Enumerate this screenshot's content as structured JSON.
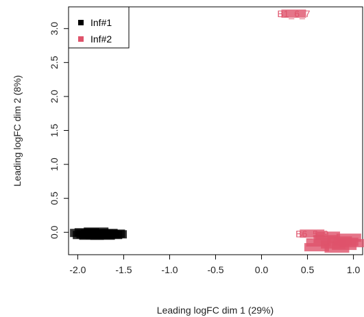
{
  "chart_data": {
    "type": "scatter",
    "title": "",
    "xlabel": "Leading logFC dim 1 (29%)",
    "ylabel": "Leading logFC dim 2 (8%)",
    "xlim": [
      -2.1,
      1.1
    ],
    "ylim": [
      -0.33,
      3.32
    ],
    "x_ticks": [
      "-2.0",
      "-1.5",
      "-1.0",
      "-0.5",
      "0.0",
      "0.5",
      "1.0"
    ],
    "y_ticks": [
      "0.0",
      "0.5",
      "1.0",
      "1.5",
      "2.0",
      "2.5",
      "3.0"
    ],
    "legend": {
      "position": "top-left",
      "entries": [
        {
          "name": "Inf#1",
          "color": "#000000"
        },
        {
          "name": "Inf#2",
          "color": "#DF536B"
        }
      ]
    },
    "series": [
      {
        "name": "Inf#1",
        "color": "#000000",
        "points": [
          {
            "x": -1.95,
            "y": -0.01
          },
          {
            "x": -1.92,
            "y": -0.04
          },
          {
            "x": -1.9,
            "y": 0.0
          },
          {
            "x": -1.88,
            "y": -0.03
          },
          {
            "x": -1.85,
            "y": -0.05
          },
          {
            "x": -1.83,
            "y": -0.02
          },
          {
            "x": -1.8,
            "y": 0.01
          },
          {
            "x": -1.78,
            "y": -0.04
          },
          {
            "x": -1.75,
            "y": -0.02
          },
          {
            "x": -1.73,
            "y": -0.05
          },
          {
            "x": -1.7,
            "y": -0.01
          },
          {
            "x": -1.68,
            "y": -0.03
          },
          {
            "x": -1.65,
            "y": -0.04
          },
          {
            "x": -1.62,
            "y": -0.02
          },
          {
            "x": -1.6,
            "y": -0.03
          }
        ],
        "labels": [
          "",
          "",
          "",
          "",
          "",
          "",
          "",
          "",
          "",
          "",
          "",
          "",
          "",
          "",
          ""
        ]
      },
      {
        "name": "Inf#2",
        "color": "#DF536B",
        "points": [
          {
            "x": 0.35,
            "y": 3.22
          },
          {
            "x": 0.55,
            "y": -0.02
          },
          {
            "x": 0.62,
            "y": -0.15
          },
          {
            "x": 0.7,
            "y": -0.1
          },
          {
            "x": 0.78,
            "y": -0.18
          },
          {
            "x": 0.85,
            "y": -0.12
          },
          {
            "x": 0.9,
            "y": -0.2
          },
          {
            "x": 0.95,
            "y": -0.08
          },
          {
            "x": 0.98,
            "y": -0.16
          },
          {
            "x": 0.6,
            "y": -0.22
          },
          {
            "x": 0.72,
            "y": -0.05
          },
          {
            "x": 0.82,
            "y": -0.24
          },
          {
            "x": 0.92,
            "y": -0.14
          }
        ],
        "labels": [
          "B1_6_7",
          "B6_5_9",
          "",
          "",
          "",
          "",
          "",
          "",
          "",
          "",
          "",
          "",
          ""
        ]
      }
    ]
  }
}
